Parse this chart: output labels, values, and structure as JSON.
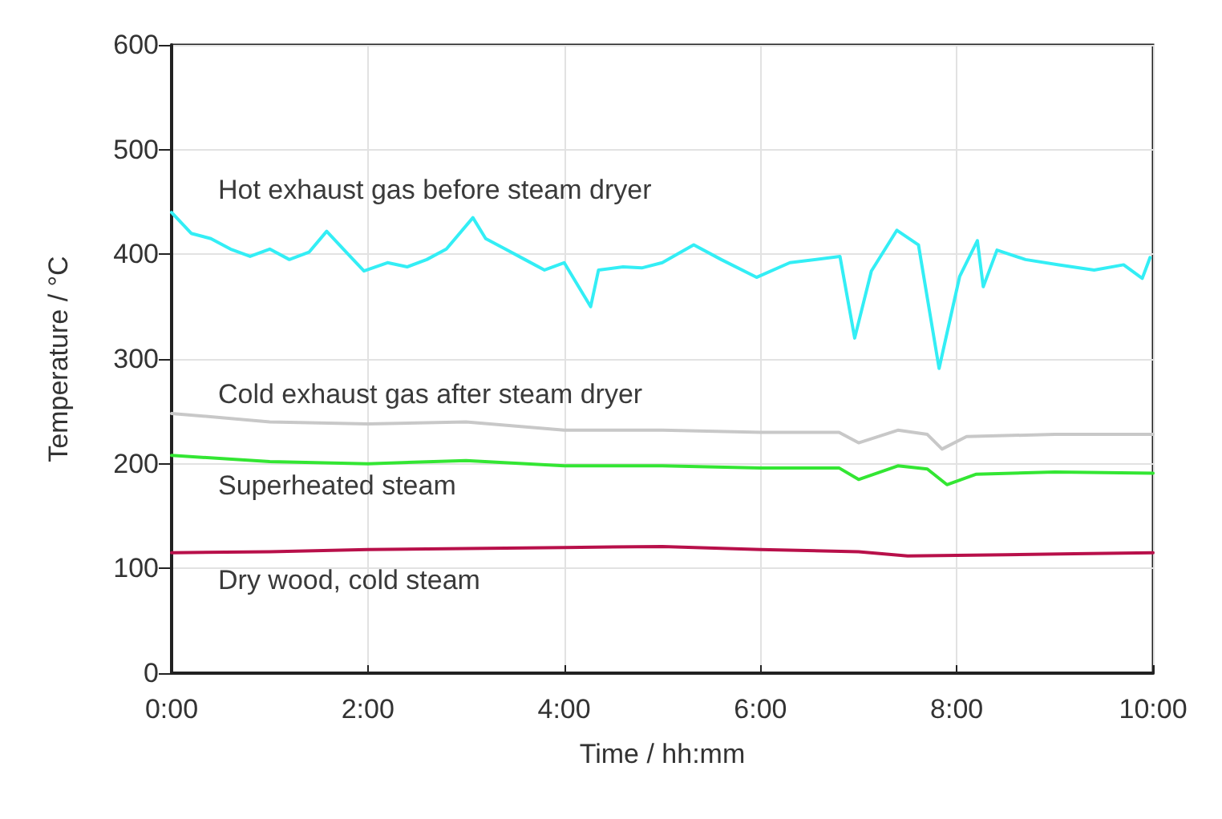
{
  "chart_data": {
    "type": "line",
    "xlabel": "Time / hh:mm",
    "ylabel": "Temperature / °C",
    "xlim": [
      0,
      10
    ],
    "xticks": [
      {
        "value": 0,
        "label": "0:00"
      },
      {
        "value": 2,
        "label": "2:00"
      },
      {
        "value": 4,
        "label": "4:00"
      },
      {
        "value": 6,
        "label": "6:00"
      },
      {
        "value": 8,
        "label": "8:00"
      },
      {
        "value": 10,
        "label": "10:00"
      }
    ],
    "ylim": [
      0,
      600
    ],
    "yticks": [
      0,
      100,
      200,
      300,
      400,
      500,
      600
    ],
    "grid": true,
    "legend": false,
    "marker": "none",
    "line_style": "solid",
    "series": [
      {
        "name": "Hot exhaust gas before steam dryer",
        "color": "#33eef5",
        "x": [
          0,
          0.2,
          0.4,
          0.6,
          0.8,
          1.0,
          1.2,
          1.4,
          1.58,
          1.8,
          1.96,
          2.2,
          2.4,
          2.6,
          2.8,
          3.07,
          3.2,
          3.4,
          3.6,
          3.8,
          4.0,
          4.27,
          4.35,
          4.6,
          4.79,
          5.0,
          5.32,
          5.6,
          5.96,
          6.3,
          6.81,
          6.96,
          7.13,
          7.39,
          7.61,
          7.82,
          8.03,
          8.21,
          8.27,
          8.41,
          8.7,
          9.04,
          9.4,
          9.7,
          9.89,
          9.97
        ],
        "values": [
          440,
          420,
          415,
          405,
          398,
          405,
          395,
          402,
          422,
          400,
          384,
          392,
          388,
          395,
          405,
          435,
          415,
          405,
          395,
          385,
          392,
          350,
          385,
          388,
          387,
          392,
          409,
          395,
          378,
          392,
          398,
          320,
          384,
          423,
          409,
          291,
          379,
          413,
          369,
          404,
          395,
          390,
          385,
          390,
          377,
          397
        ]
      },
      {
        "name": "Cold exhaust gas after steam dryer",
        "color": "#c8c8c8",
        "x": [
          0,
          1,
          2,
          3,
          4,
          5,
          6,
          6.8,
          7.0,
          7.4,
          7.7,
          7.85,
          8.1,
          9,
          10
        ],
        "values": [
          248,
          240,
          238,
          240,
          232,
          232,
          230,
          230,
          220,
          232,
          228,
          214,
          226,
          228,
          228
        ]
      },
      {
        "name": "Superheated steam",
        "color": "#33e633",
        "x": [
          0,
          1,
          2,
          3,
          4,
          5,
          6,
          6.8,
          7.0,
          7.4,
          7.7,
          7.9,
          8.2,
          9,
          10
        ],
        "values": [
          208,
          202,
          200,
          203,
          198,
          198,
          196,
          196,
          185,
          198,
          195,
          180,
          190,
          192,
          191
        ]
      },
      {
        "name": "Dry wood, cold steam",
        "color": "#b8104a",
        "x": [
          0,
          1,
          2,
          3,
          4,
          5,
          6,
          7,
          7.5,
          8.5,
          9.2,
          10
        ],
        "values": [
          115,
          116,
          118,
          119,
          120,
          121,
          118,
          116,
          112,
          113,
          114,
          115
        ]
      }
    ]
  }
}
